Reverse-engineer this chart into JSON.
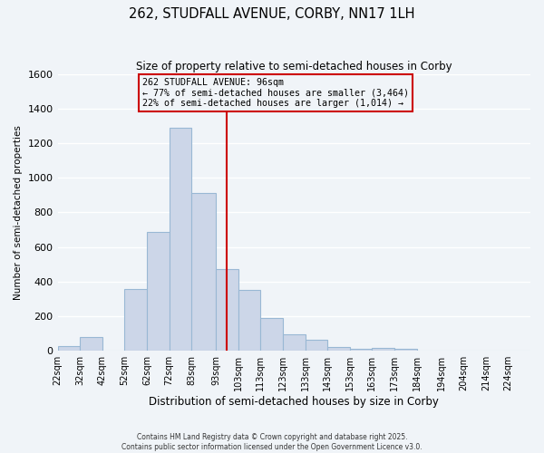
{
  "title": "262, STUDFALL AVENUE, CORBY, NN17 1LH",
  "subtitle": "Size of property relative to semi-detached houses in Corby",
  "xlabel": "Distribution of semi-detached houses by size in Corby",
  "ylabel": "Number of semi-detached properties",
  "bar_labels": [
    "22sqm",
    "32sqm",
    "42sqm",
    "52sqm",
    "62sqm",
    "72sqm",
    "83sqm",
    "93sqm",
    "103sqm",
    "113sqm",
    "123sqm",
    "133sqm",
    "143sqm",
    "153sqm",
    "163sqm",
    "173sqm",
    "184sqm",
    "194sqm",
    "204sqm",
    "214sqm",
    "224sqm"
  ],
  "bar_values": [
    25,
    80,
    0,
    355,
    685,
    1290,
    910,
    470,
    350,
    190,
    95,
    65,
    20,
    10,
    15,
    10,
    0,
    0,
    0,
    0,
    0
  ],
  "bar_color": "#ccd6e8",
  "bar_edge_color": "#99b8d4",
  "vline_color": "#cc0000",
  "annotation_title": "262 STUDFALL AVENUE: 96sqm",
  "annotation_line1": "← 77% of semi-detached houses are smaller (3,464)",
  "annotation_line2": "22% of semi-detached houses are larger (1,014) →",
  "annotation_box_color": "#cc0000",
  "ylim": [
    0,
    1600
  ],
  "yticks": [
    0,
    200,
    400,
    600,
    800,
    1000,
    1200,
    1400,
    1600
  ],
  "footnote1": "Contains HM Land Registry data © Crown copyright and database right 2025.",
  "footnote2": "Contains public sector information licensed under the Open Government Licence v3.0.",
  "bin_edges": [
    17,
    27,
    37,
    47,
    57,
    67,
    77,
    88,
    98,
    108,
    118,
    128,
    138,
    148,
    158,
    168,
    178,
    189,
    199,
    209,
    219,
    229
  ],
  "bg_color": "#f0f4f8",
  "grid_color": "#ffffff",
  "vline_x": 93
}
